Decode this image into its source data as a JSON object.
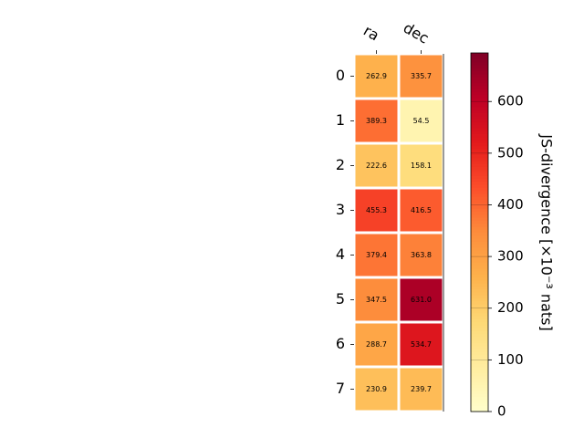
{
  "chart_data": {
    "type": "heatmap",
    "x_categories": [
      "ra",
      "dec"
    ],
    "y_categories": [
      "0",
      "1",
      "2",
      "3",
      "4",
      "5",
      "6",
      "7"
    ],
    "values": [
      [
        262.9,
        335.7
      ],
      [
        389.3,
        54.5
      ],
      [
        222.6,
        158.1
      ],
      [
        455.3,
        416.5
      ],
      [
        379.4,
        363.8
      ],
      [
        347.5,
        631.0
      ],
      [
        288.7,
        534.7
      ],
      [
        230.9,
        239.7
      ]
    ],
    "value_labels": [
      [
        "262.9",
        "335.7"
      ],
      [
        "389.3",
        "54.5"
      ],
      [
        "222.6",
        "158.1"
      ],
      [
        "455.3",
        "416.5"
      ],
      [
        "379.4",
        "363.8"
      ],
      [
        "347.5",
        "631.0"
      ],
      [
        "288.7",
        "534.7"
      ],
      [
        "230.9",
        "239.7"
      ]
    ],
    "colormap": "YlOrRd",
    "colormap_colors": [
      "#ffffcc",
      "#ffeda0",
      "#fed976",
      "#feb24c",
      "#fd8d3c",
      "#fc4e2a",
      "#e31a1c",
      "#bd0026",
      "#800026"
    ],
    "colorbar_label": "JS-divergence [×10⁻³ nats]",
    "clim": [
      0,
      694
    ],
    "colorbar_ticks": [
      0,
      100,
      200,
      300,
      400,
      500,
      600
    ]
  }
}
